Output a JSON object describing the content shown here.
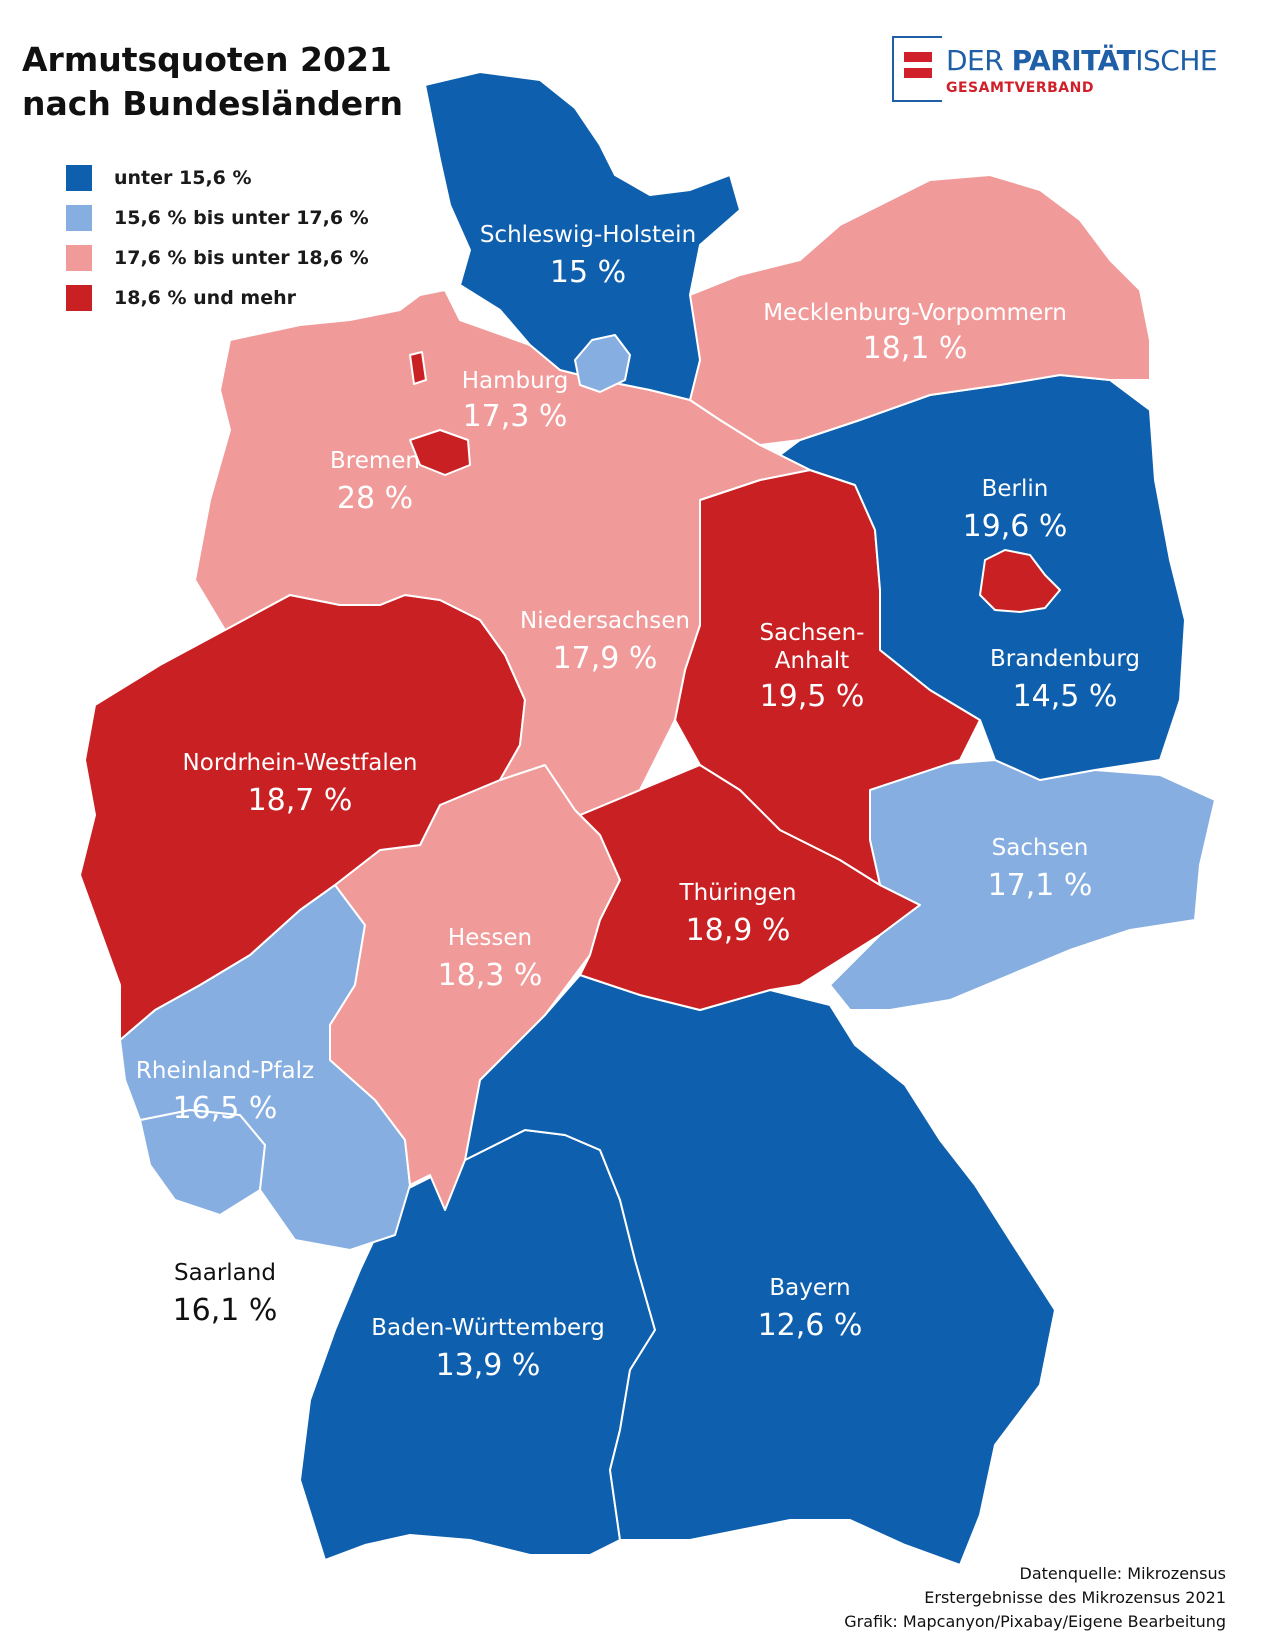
{
  "title": {
    "line1": "Armutsquoten 2021",
    "line2": "nach Bundesländern"
  },
  "legend": [
    {
      "label": "unter 15,6 %",
      "color": "#0e5fae"
    },
    {
      "label": "15,6 % bis unter 17,6  %",
      "color": "#86aee0"
    },
    {
      "label": "17,6 % bis unter 18,6 %",
      "color": "#f09a9a"
    },
    {
      "label": "18,6 % und mehr",
      "color": "#c92023"
    }
  ],
  "logo": {
    "main_light": "DER ",
    "main_bold": "PARITÄT",
    "main_tail": "ISCHE",
    "sub": "GESAMTVERBAND"
  },
  "states": {
    "schleswig_holstein": {
      "name": "Schleswig-Holstein",
      "value": "15 %",
      "color": "#0e5fae"
    },
    "hamburg": {
      "name": "Hamburg",
      "value": "17,3 %",
      "color": "#86aee0"
    },
    "mecklenburg_vorpommern": {
      "name": "Mecklenburg-Vorpommern",
      "value": "18,1 %",
      "color": "#f09a9a"
    },
    "bremen": {
      "name": "Bremen",
      "value": "28 %",
      "color": "#c92023"
    },
    "niedersachsen": {
      "name": "Niedersachsen",
      "value": "17,9 %",
      "color": "#f09a9a"
    },
    "berlin": {
      "name": "Berlin",
      "value": "19,6 %",
      "color": "#c92023"
    },
    "brandenburg": {
      "name": "Brandenburg",
      "value": "14,5 %",
      "color": "#0e5fae"
    },
    "sachsen_anhalt": {
      "name_line1": "Sachsen-",
      "name_line2": "Anhalt",
      "value": "19,5 %",
      "color": "#c92023"
    },
    "nordrhein_westfalen": {
      "name": "Nordrhein-Westfalen",
      "value": "18,7 %",
      "color": "#c92023"
    },
    "sachsen": {
      "name": "Sachsen",
      "value": "17,1 %",
      "color": "#86aee0"
    },
    "thueringen": {
      "name": "Thüringen",
      "value": "18,9 %",
      "color": "#c92023"
    },
    "hessen": {
      "name": "Hessen",
      "value": "18,3 %",
      "color": "#f09a9a"
    },
    "rheinland_pfalz": {
      "name": "Rheinland-Pfalz",
      "value": "16,5 %",
      "color": "#86aee0"
    },
    "saarland": {
      "name": "Saarland",
      "value": "16,1 %",
      "color": "#86aee0"
    },
    "baden_wuerttemberg": {
      "name": "Baden-Württemberg",
      "value": "13,9 %",
      "color": "#0e5fae"
    },
    "bayern": {
      "name": "Bayern",
      "value": "12,6 %",
      "color": "#0e5fae"
    }
  },
  "source": {
    "line1": "Datenquelle: Mikrozensus",
    "line2": "Erstergebnisse des Mikrozensus 2021",
    "line3": "Grafik: Mapcanyon/Pixabay/Eigene Bearbeitung"
  }
}
